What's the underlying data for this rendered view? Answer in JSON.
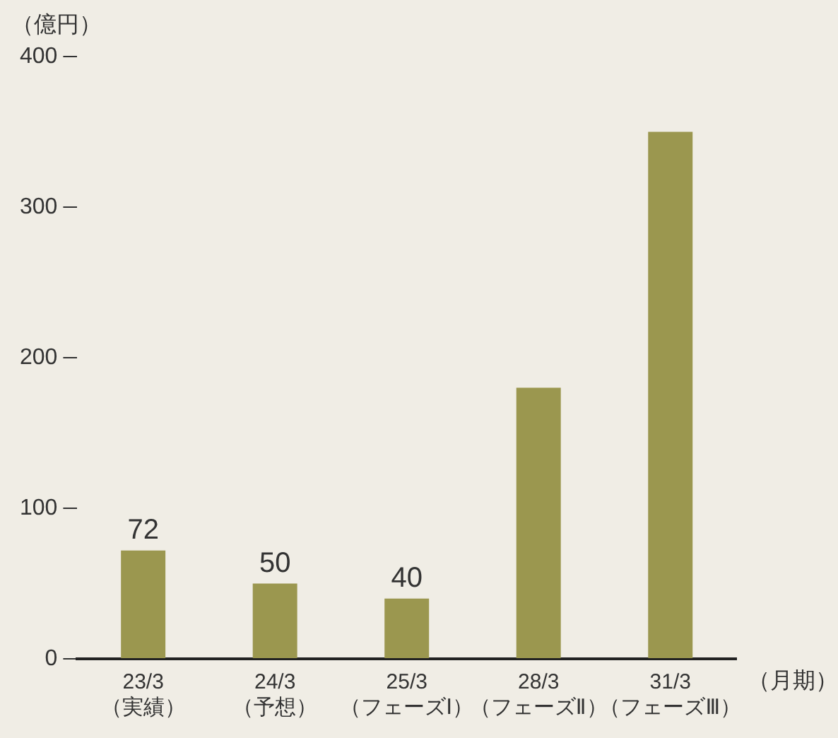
{
  "chart_data": {
    "type": "bar",
    "xlabel": "（月期）",
    "ylabel": "（億円）",
    "categories": [
      "23/3\n（実績）",
      "24/3\n（予想）",
      "25/3\n（フェーズⅠ）",
      "28/3\n（フェーズⅡ）",
      "31/3\n（フェーズⅢ）"
    ],
    "values": [
      72,
      50,
      40,
      180,
      350
    ],
    "value_labels": [
      "72",
      "50",
      "40",
      null,
      null
    ],
    "color": "#9b974f",
    "ylim": [
      0,
      400
    ],
    "yticks": [
      0,
      100,
      200,
      300,
      400
    ],
    "grid": false,
    "legend": false
  }
}
